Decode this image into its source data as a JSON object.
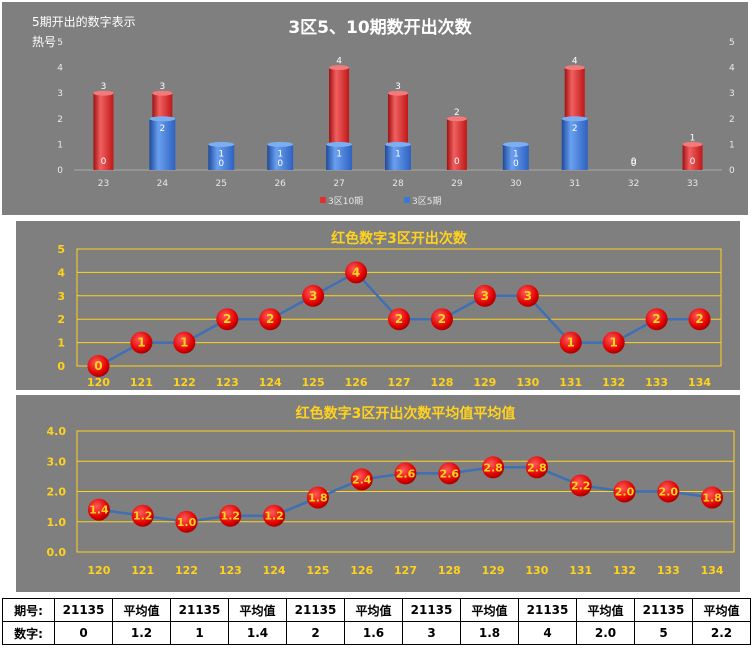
{
  "chart_data": [
    {
      "type": "bar",
      "title": "3区5、10期数开出次数",
      "side_label": "5期开出的数字表示热号",
      "categories": [
        "23",
        "24",
        "25",
        "26",
        "27",
        "28",
        "29",
        "30",
        "31",
        "32",
        "33"
      ],
      "series": [
        {
          "name": "3区10期",
          "color": "#e03030",
          "values": [
            3,
            3,
            0,
            0,
            4,
            3,
            2,
            0,
            4,
            0,
            1
          ]
        },
        {
          "name": "3区5期",
          "color": "#3a78d8",
          "values": [
            0,
            2,
            1,
            1,
            1,
            1,
            0,
            1,
            2,
            0,
            0
          ]
        }
      ],
      "ylim": [
        0,
        5
      ],
      "yticks": [
        "0",
        "1",
        "2",
        "3",
        "4",
        "5"
      ],
      "legend_position": "bottom"
    },
    {
      "type": "line",
      "title": "红色数字3区开出次数",
      "x": [
        "120",
        "121",
        "122",
        "123",
        "124",
        "125",
        "126",
        "127",
        "128",
        "129",
        "130",
        "131",
        "132",
        "133",
        "134"
      ],
      "values": [
        0,
        1,
        1,
        2,
        2,
        3,
        4,
        2,
        2,
        3,
        3,
        1,
        1,
        2,
        2
      ],
      "labels": [
        "0",
        "1",
        "1",
        "2",
        "2",
        "3",
        "4",
        "2",
        "2",
        "3",
        "3",
        "1",
        "1",
        "2",
        "2"
      ],
      "ylim": [
        0,
        5
      ],
      "yticks": [
        "0",
        "1",
        "2",
        "3",
        "4",
        "5"
      ],
      "grid": true
    },
    {
      "type": "line",
      "title": "红色数字3区开出次数平均值平均值",
      "x": [
        "120",
        "121",
        "122",
        "123",
        "124",
        "125",
        "126",
        "127",
        "128",
        "129",
        "130",
        "131",
        "132",
        "133",
        "134"
      ],
      "values": [
        1.4,
        1.2,
        1.0,
        1.2,
        1.2,
        1.8,
        2.4,
        2.6,
        2.6,
        2.8,
        2.8,
        2.2,
        2.0,
        2.0,
        1.8
      ],
      "labels": [
        "1.4",
        "1.2",
        "1.0",
        "1.2",
        "1.2",
        "1.8",
        "2.4",
        "2.6",
        "2.6",
        "2.8",
        "2.8",
        "2.2",
        "2.0",
        "2.0",
        "1.8"
      ],
      "ylim": [
        0,
        4
      ],
      "yticks": [
        "0.0",
        "1.0",
        "2.0",
        "3.0",
        "4.0"
      ],
      "grid": true
    }
  ],
  "table": {
    "rows": [
      [
        "期号:",
        "21135",
        "平均值",
        "21135",
        "平均值",
        "21135",
        "平均值",
        "21135",
        "平均值",
        "21135",
        "平均值",
        "21135",
        "平均值"
      ],
      [
        "数字:",
        "0",
        "1.2",
        "1",
        "1.4",
        "2",
        "1.6",
        "3",
        "1.8",
        "4",
        "2.0",
        "5",
        "2.2"
      ]
    ]
  },
  "colors": {
    "panel_bg": "#7f7f7f",
    "gold": "#ffd21e",
    "line": "#3f6fb5",
    "marker": "#e00000"
  }
}
